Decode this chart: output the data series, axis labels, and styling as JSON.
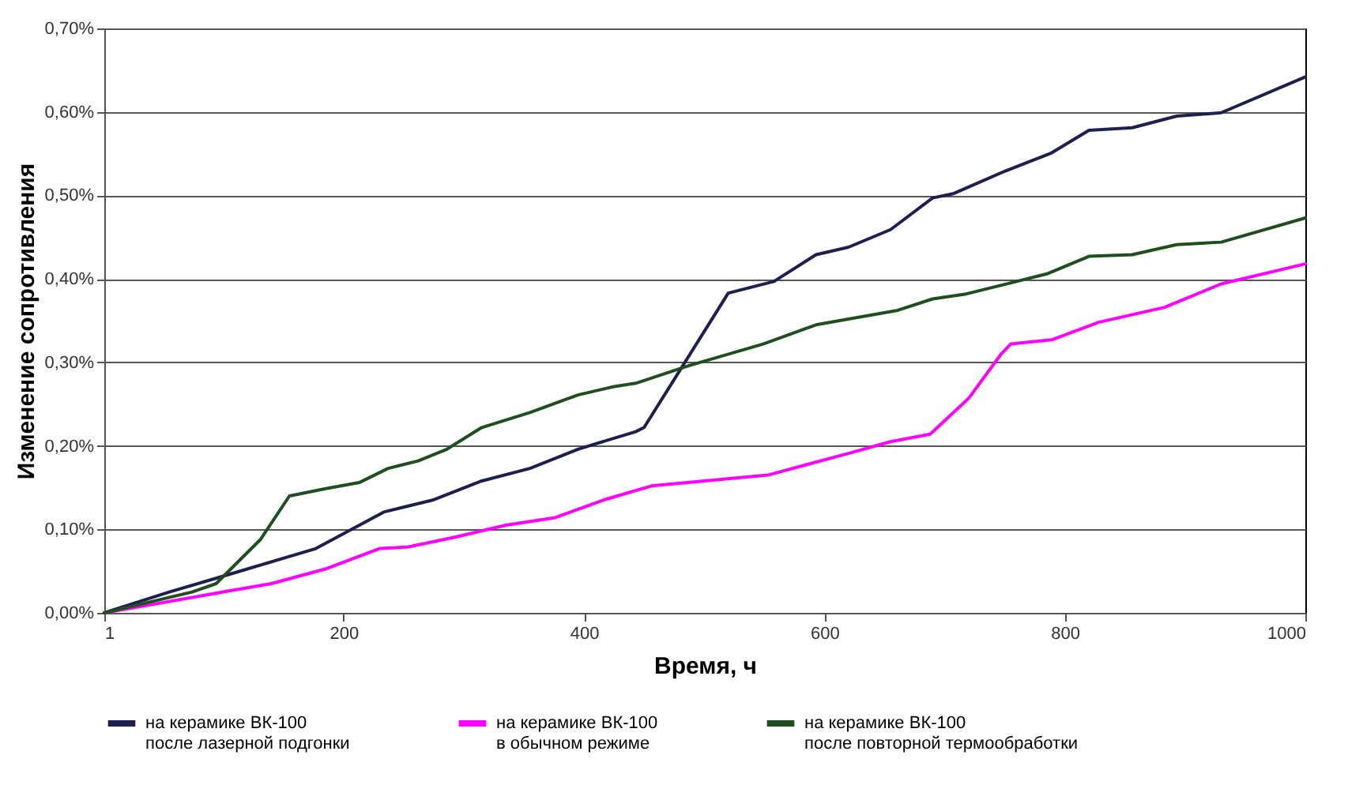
{
  "chart_data": {
    "type": "line",
    "xlabel": "Время, ч",
    "ylabel": "Изменение сопротивления",
    "xlim": [
      1,
      1000
    ],
    "xticks": [
      1,
      200,
      400,
      600,
      800,
      1000
    ],
    "ylim": [
      0,
      0.7
    ],
    "yticks": [
      {
        "value": 0,
        "label": "0,00%"
      },
      {
        "value": 0.1,
        "label": "0,10%"
      },
      {
        "value": 0.2,
        "label": "0,20%"
      },
      {
        "value": 0.3,
        "label": "0,30%"
      },
      {
        "value": 0.4,
        "label": "0,40%"
      },
      {
        "value": 0.5,
        "label": "0,50%"
      },
      {
        "value": 0.6,
        "label": "0,60%"
      },
      {
        "value": 0.7,
        "label": "0,70%"
      }
    ],
    "grid": "y",
    "legend": "bottom",
    "marker": "none",
    "line_style": "solid",
    "series": [
      {
        "name": "на керамике ВК-100 после лазерной подгонки",
        "color": "#1f1f4f",
        "x": [
          1,
          55,
          100,
          177,
          234,
          274,
          315,
          355,
          395,
          443,
          450,
          520,
          558,
          593,
          620,
          655,
          690,
          707,
          750,
          789,
          820,
          856,
          893,
          930,
          1000
        ],
        "values": [
          0,
          0.025,
          0.044,
          0.077,
          0.121,
          0.135,
          0.158,
          0.173,
          0.196,
          0.217,
          0.222,
          0.383,
          0.397,
          0.429,
          0.438,
          0.459,
          0.497,
          0.502,
          0.529,
          0.551,
          0.578,
          0.581,
          0.595,
          0.599,
          0.642
        ]
      },
      {
        "name": "на керамике ВК-100 в обычном режиме",
        "color": "#ff00ff",
        "x": [
          1,
          100,
          140,
          186,
          230,
          254,
          294,
          335,
          376,
          416,
          456,
          553,
          620,
          655,
          688,
          720,
          747,
          755,
          789,
          828,
          883,
          930,
          1000
        ],
        "values": [
          0,
          0.025,
          0.035,
          0.053,
          0.077,
          0.079,
          0.091,
          0.105,
          0.114,
          0.135,
          0.152,
          0.165,
          0.191,
          0.205,
          0.214,
          0.257,
          0.31,
          0.322,
          0.327,
          0.348,
          0.366,
          0.394,
          0.418
        ]
      },
      {
        "name": "на керамике ВК-100 после повторной термообработки",
        "color": "#1f4f1f",
        "x": [
          1,
          74,
          94,
          131,
          155,
          186,
          213,
          237,
          262,
          286,
          315,
          355,
          395,
          425,
          443,
          487,
          549,
          593,
          660,
          690,
          718,
          785,
          820,
          856,
          893,
          930,
          1000
        ],
        "values": [
          0,
          0.025,
          0.035,
          0.088,
          0.14,
          0.149,
          0.156,
          0.173,
          0.182,
          0.196,
          0.222,
          0.24,
          0.261,
          0.271,
          0.275,
          0.296,
          0.322,
          0.345,
          0.362,
          0.376,
          0.382,
          0.406,
          0.427,
          0.429,
          0.441,
          0.444,
          0.473
        ]
      }
    ]
  }
}
